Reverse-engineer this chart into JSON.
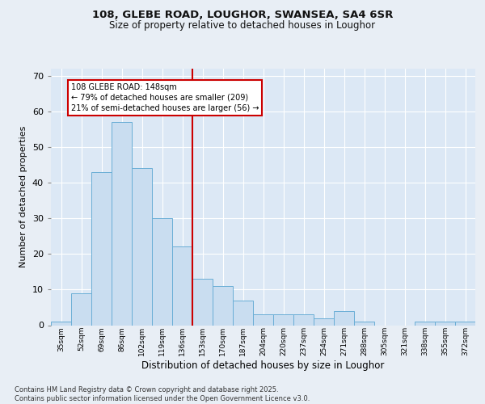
{
  "title1": "108, GLEBE ROAD, LOUGHOR, SWANSEA, SA4 6SR",
  "title2": "Size of property relative to detached houses in Loughor",
  "xlabel": "Distribution of detached houses by size in Loughor",
  "ylabel": "Number of detached properties",
  "categories": [
    "35sqm",
    "52sqm",
    "69sqm",
    "86sqm",
    "102sqm",
    "119sqm",
    "136sqm",
    "153sqm",
    "170sqm",
    "187sqm",
    "204sqm",
    "220sqm",
    "237sqm",
    "254sqm",
    "271sqm",
    "288sqm",
    "305sqm",
    "321sqm",
    "338sqm",
    "355sqm",
    "372sqm"
  ],
  "values": [
    1,
    9,
    43,
    57,
    44,
    30,
    22,
    13,
    11,
    7,
    3,
    3,
    3,
    2,
    4,
    1,
    0,
    0,
    1,
    1,
    1
  ],
  "bar_color": "#c9ddf0",
  "bar_edge_color": "#6aaed6",
  "vline_color": "#cc0000",
  "annotation_text": "108 GLEBE ROAD: 148sqm\n← 79% of detached houses are smaller (209)\n21% of semi-detached houses are larger (56) →",
  "annotation_box_color": "#cc0000",
  "plot_bg_color": "#dce8f5",
  "fig_bg_color": "#e8eef5",
  "grid_color": "#ffffff",
  "footer": "Contains HM Land Registry data © Crown copyright and database right 2025.\nContains public sector information licensed under the Open Government Licence v3.0.",
  "ylim": [
    0,
    72
  ],
  "yticks": [
    0,
    10,
    20,
    30,
    40,
    50,
    60,
    70
  ],
  "vline_index": 7
}
